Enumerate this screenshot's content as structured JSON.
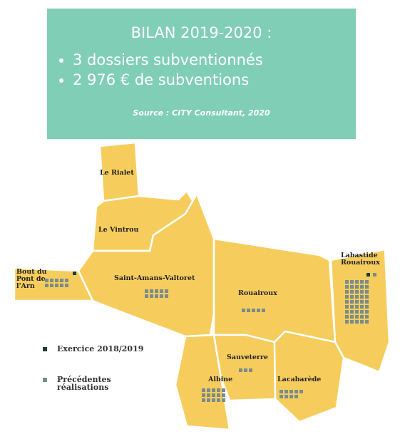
{
  "header": {
    "title": "BILAN 2019-2020 :",
    "bullets": [
      "3 dossiers subventionnés",
      "2 976 € de subventions"
    ],
    "source": "Source : CITY Consultant, 2020"
  },
  "legend": {
    "current": "Exercice 2018/2019",
    "previous": "Précédentes réalisations",
    "current_color": "#1f3b3b",
    "previous_color": "#7b8b8b"
  },
  "communes": [
    {
      "name": "Le Rialet",
      "current": 0,
      "previous": 0
    },
    {
      "name": "Le Vintrou",
      "current": 0,
      "previous": 0
    },
    {
      "name": "Bout du Pont de l'Arn",
      "current": 1,
      "previous": 10
    },
    {
      "name": "Saint-Amans-Valtoret",
      "current": 0,
      "previous": 10
    },
    {
      "name": "Rouairoux",
      "current": 0,
      "previous": 5
    },
    {
      "name": "Labastide Rouairoux",
      "current": 1,
      "previous": 46
    },
    {
      "name": "Sauveterre",
      "current": 0,
      "previous": 3
    },
    {
      "name": "Albine",
      "current": 0,
      "previous": 15
    },
    {
      "name": "Lacabarède",
      "current": 0,
      "previous": 9
    }
  ]
}
